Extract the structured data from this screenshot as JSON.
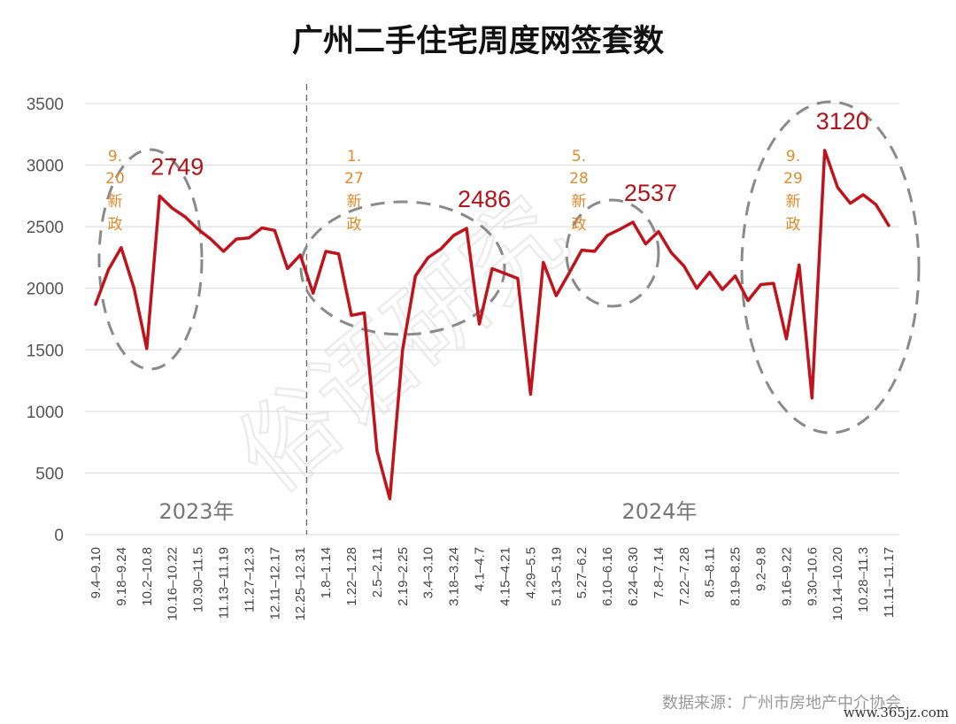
{
  "watermark": "俗语研究",
  "source_note": "数据来源：广州市房地产中介协会",
  "site_watermark": "www.365jz.com",
  "chart_data": {
    "type": "line",
    "title": "广州二手住宅周度网签套数",
    "xlabel": "",
    "ylabel": "",
    "ylim": [
      0,
      3500
    ],
    "yticks": [
      0,
      500,
      1000,
      1500,
      2000,
      2500,
      3000,
      3500
    ],
    "grid": true,
    "legend": "none",
    "line_color": "#c0141c",
    "categories": [
      "9.4–9.10",
      "9.11–9.17",
      "9.18–9.24",
      "9.25–10.1",
      "10.2–10.8",
      "10.9–10.15",
      "10.16–10.22",
      "10.23–10.29",
      "10.30–11.5",
      "11.6–11.12",
      "11.13–11.19",
      "11.20–11.26",
      "11.27–12.3",
      "12.4–12.10",
      "12.11–12.17",
      "12.18–12.24",
      "12.25–12.31",
      "1.1–1.7",
      "1.8–1.14",
      "1.15–1.21",
      "1.22–1.28",
      "1.29–2.4",
      "2.5–2.11",
      "2.12–2.18",
      "2.19–2.25",
      "2.26–3.2",
      "3.4–3.10",
      "3.11–3.17",
      "3.18–3.24",
      "3.25–3.31",
      "4.1–4.7",
      "4.8–4.14",
      "4.15–4.21",
      "4.22–4.28",
      "4.29–5.5",
      "5.6–5.12",
      "5.13–5.19",
      "5.20–5.26",
      "5.27–6.2",
      "6.3–6.9",
      "6.10–6.16",
      "6.17–6.23",
      "6.24–6.30",
      "7.1–7.7",
      "7.8–7.14",
      "7.15–7.21",
      "7.22–7.28",
      "7.29–8.4",
      "8.5–8.11",
      "8.12–8.18",
      "8.19–8.25",
      "8.26–9.1",
      "9.2–9.8",
      "9.9–9.15",
      "9.16–9.22",
      "9.23–9.29",
      "9.30–10.6",
      "10.7–10.13",
      "10.14–10.20",
      "10.21–10.27",
      "10.28–11.3",
      "11.4–11.10",
      "11.11–11.17"
    ],
    "tick_labels": [
      "9.4–9.10",
      "9.18–9.24",
      "10.2–10.8",
      "10.16–10.22",
      "10.30–11.5",
      "11.13–11.19",
      "11.27–12.3",
      "12.11–12.17",
      "12.25–12.31",
      "1.8–1.14",
      "1.22–1.28",
      "2.5–2.11",
      "2.19–2.25",
      "3.4–3.10",
      "3.18–3.24",
      "4.1–4.7",
      "4.15–4.21",
      "4.29–5.5",
      "5.13–5.19",
      "5.27–6.2",
      "6.10–6.16",
      "6.24–6.30",
      "7.8–7.14",
      "7.22–7.28",
      "8.5–8.11",
      "8.19–8.25",
      "9.2–9.8",
      "9.16–9.22",
      "9.30–10.6",
      "10.14–10.20",
      "10.28–11.3",
      "11.11–11.17"
    ],
    "values": [
      1870,
      2150,
      2330,
      2000,
      1510,
      2749,
      2650,
      2580,
      2480,
      2400,
      2300,
      2400,
      2410,
      2490,
      2470,
      2160,
      2270,
      1960,
      2300,
      2280,
      1780,
      1800,
      680,
      290,
      1500,
      2100,
      2250,
      2320,
      2430,
      2486,
      1710,
      2160,
      2120,
      2080,
      1140,
      2210,
      1940,
      2120,
      2310,
      2300,
      2430,
      2480,
      2537,
      2360,
      2460,
      2290,
      2180,
      2000,
      2130,
      1990,
      2100,
      1900,
      2030,
      2040,
      1590,
      2190,
      1110,
      3120,
      2820,
      2690,
      2760,
      2680,
      2510
    ],
    "period_labels": [
      "2023年",
      "2024年"
    ],
    "period_divider_after": "12.25–12.31",
    "peak_labels": [
      {
        "at": "10.9–10.15",
        "text": "2749"
      },
      {
        "at": "3.25–3.31",
        "text": "2486"
      },
      {
        "at": "6.24–6.30",
        "text": "2537"
      },
      {
        "at": "10.7–10.13",
        "text": "3120"
      }
    ],
    "annotations": [
      {
        "lines": [
          "9.",
          "20",
          "新",
          "政"
        ]
      },
      {
        "lines": [
          "1.",
          "27",
          "新",
          "政"
        ]
      },
      {
        "lines": [
          "5.",
          "28",
          "新",
          "政"
        ]
      },
      {
        "lines": [
          "9.",
          "29",
          "新",
          "政"
        ]
      }
    ]
  }
}
